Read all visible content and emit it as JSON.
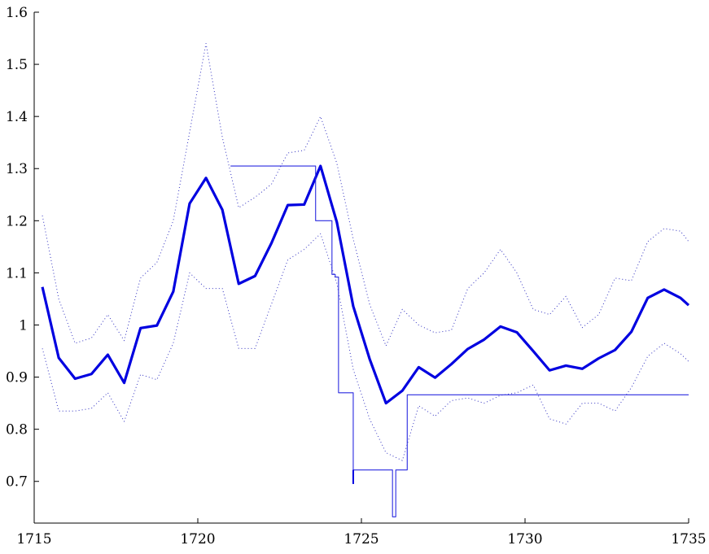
{
  "chart_data": {
    "type": "line",
    "title": "",
    "xlabel": "",
    "ylabel": "",
    "xlim": [
      1715,
      1735
    ],
    "ylim": [
      0.62,
      1.6
    ],
    "grid": false,
    "legend": "none",
    "xticks": [
      "1715",
      "1720",
      "1725",
      "1730",
      "1735"
    ],
    "yticks": [
      "0.7",
      "0.8",
      "0.9",
      "1",
      "1.1",
      "1.2",
      "1.3",
      "1.4",
      "1.5",
      "1.6"
    ],
    "series": [
      {
        "style": "thick",
        "color": "#0000e0",
        "x": [
          1715.25,
          1715.75,
          1716.25,
          1716.75,
          1717.25,
          1717.75,
          1718.25,
          1718.75,
          1719.25,
          1719.75,
          1720.25,
          1720.75,
          1721.25,
          1721.75,
          1722.25,
          1722.75,
          1723.25,
          1723.75,
          1724.25,
          1724.75,
          1725.25,
          1725.75,
          1726.25,
          1726.75,
          1727.25,
          1727.75,
          1728.25,
          1728.75,
          1729.25,
          1729.75,
          1730.25,
          1730.75,
          1731.25,
          1731.75,
          1732.25,
          1732.75,
          1733.25,
          1733.75,
          1734.25,
          1734.75,
          1735.0
        ],
        "y": [
          1.073,
          0.937,
          0.897,
          0.906,
          0.943,
          0.889,
          0.994,
          0.999,
          1.064,
          1.233,
          1.282,
          1.221,
          1.079,
          1.094,
          1.157,
          1.23,
          1.231,
          1.305,
          1.197,
          1.036,
          0.935,
          0.85,
          0.874,
          0.919,
          0.899,
          0.925,
          0.954,
          0.972,
          0.997,
          0.986,
          0.95,
          0.913,
          0.922,
          0.916,
          0.936,
          0.952,
          0.987,
          1.052,
          1.068,
          1.052,
          1.038
        ]
      },
      {
        "style": "dotted-upper",
        "color": "#3030c0",
        "x": [
          1715.25,
          1715.75,
          1716.25,
          1716.75,
          1717.25,
          1717.75,
          1718.25,
          1718.75,
          1719.25,
          1719.75,
          1720.25,
          1720.75,
          1721.25,
          1721.75,
          1722.25,
          1722.75,
          1723.25,
          1723.75,
          1724.25,
          1724.75,
          1725.25,
          1725.75,
          1726.25,
          1726.75,
          1727.25,
          1727.75,
          1728.25,
          1728.75,
          1729.25,
          1729.75,
          1730.25,
          1730.75,
          1731.25,
          1731.75,
          1732.25,
          1732.75,
          1733.25,
          1733.75,
          1734.25,
          1734.75,
          1735.0
        ],
        "y": [
          1.21,
          1.05,
          0.965,
          0.975,
          1.02,
          0.97,
          1.09,
          1.12,
          1.2,
          1.37,
          1.54,
          1.36,
          1.225,
          1.245,
          1.27,
          1.33,
          1.335,
          1.4,
          1.31,
          1.165,
          1.04,
          0.96,
          1.03,
          1.0,
          0.985,
          0.99,
          1.07,
          1.1,
          1.145,
          1.1,
          1.03,
          1.02,
          1.055,
          0.995,
          1.02,
          1.09,
          1.085,
          1.16,
          1.185,
          1.18,
          1.16
        ]
      },
      {
        "style": "dotted-lower",
        "color": "#3030c0",
        "x": [
          1715.25,
          1715.75,
          1716.25,
          1716.75,
          1717.25,
          1717.75,
          1718.25,
          1718.75,
          1719.25,
          1719.75,
          1720.25,
          1720.75,
          1721.25,
          1721.75,
          1722.25,
          1722.75,
          1723.25,
          1723.75,
          1724.25,
          1724.75,
          1725.25,
          1725.75,
          1726.25,
          1726.75,
          1727.25,
          1727.75,
          1728.25,
          1728.75,
          1729.25,
          1729.75,
          1730.25,
          1730.75,
          1731.25,
          1731.75,
          1732.25,
          1732.75,
          1733.25,
          1733.75,
          1734.25,
          1734.75,
          1735.0
        ],
        "y": [
          0.955,
          0.835,
          0.835,
          0.84,
          0.87,
          0.815,
          0.905,
          0.895,
          0.965,
          1.1,
          1.07,
          1.07,
          0.955,
          0.955,
          1.04,
          1.125,
          1.145,
          1.175,
          1.08,
          0.915,
          0.82,
          0.755,
          0.74,
          0.845,
          0.825,
          0.855,
          0.86,
          0.85,
          0.865,
          0.87,
          0.885,
          0.82,
          0.81,
          0.85,
          0.85,
          0.835,
          0.88,
          0.94,
          0.965,
          0.945,
          0.93
        ]
      },
      {
        "style": "step",
        "color": "#2a2ae0",
        "x": [
          1721.0,
          1723.6,
          1723.6,
          1724.1,
          1724.1,
          1724.2,
          1724.2,
          1724.3,
          1724.3,
          1724.75,
          1724.75,
          1725.95,
          1725.95,
          1726.05,
          1726.05,
          1726.4,
          1726.4,
          1735.0
        ],
        "y": [
          1.305,
          1.305,
          1.2,
          1.2,
          1.097,
          1.097,
          1.092,
          1.092,
          0.87,
          0.87,
          0.722,
          0.722,
          0.632,
          0.632,
          0.722,
          0.722,
          0.866,
          0.866
        ]
      }
    ],
    "annotations": [
      {
        "type": "vline",
        "x": 1724.75,
        "y": [
          0.695,
          0.722
        ],
        "color": "#0000e0"
      }
    ]
  }
}
